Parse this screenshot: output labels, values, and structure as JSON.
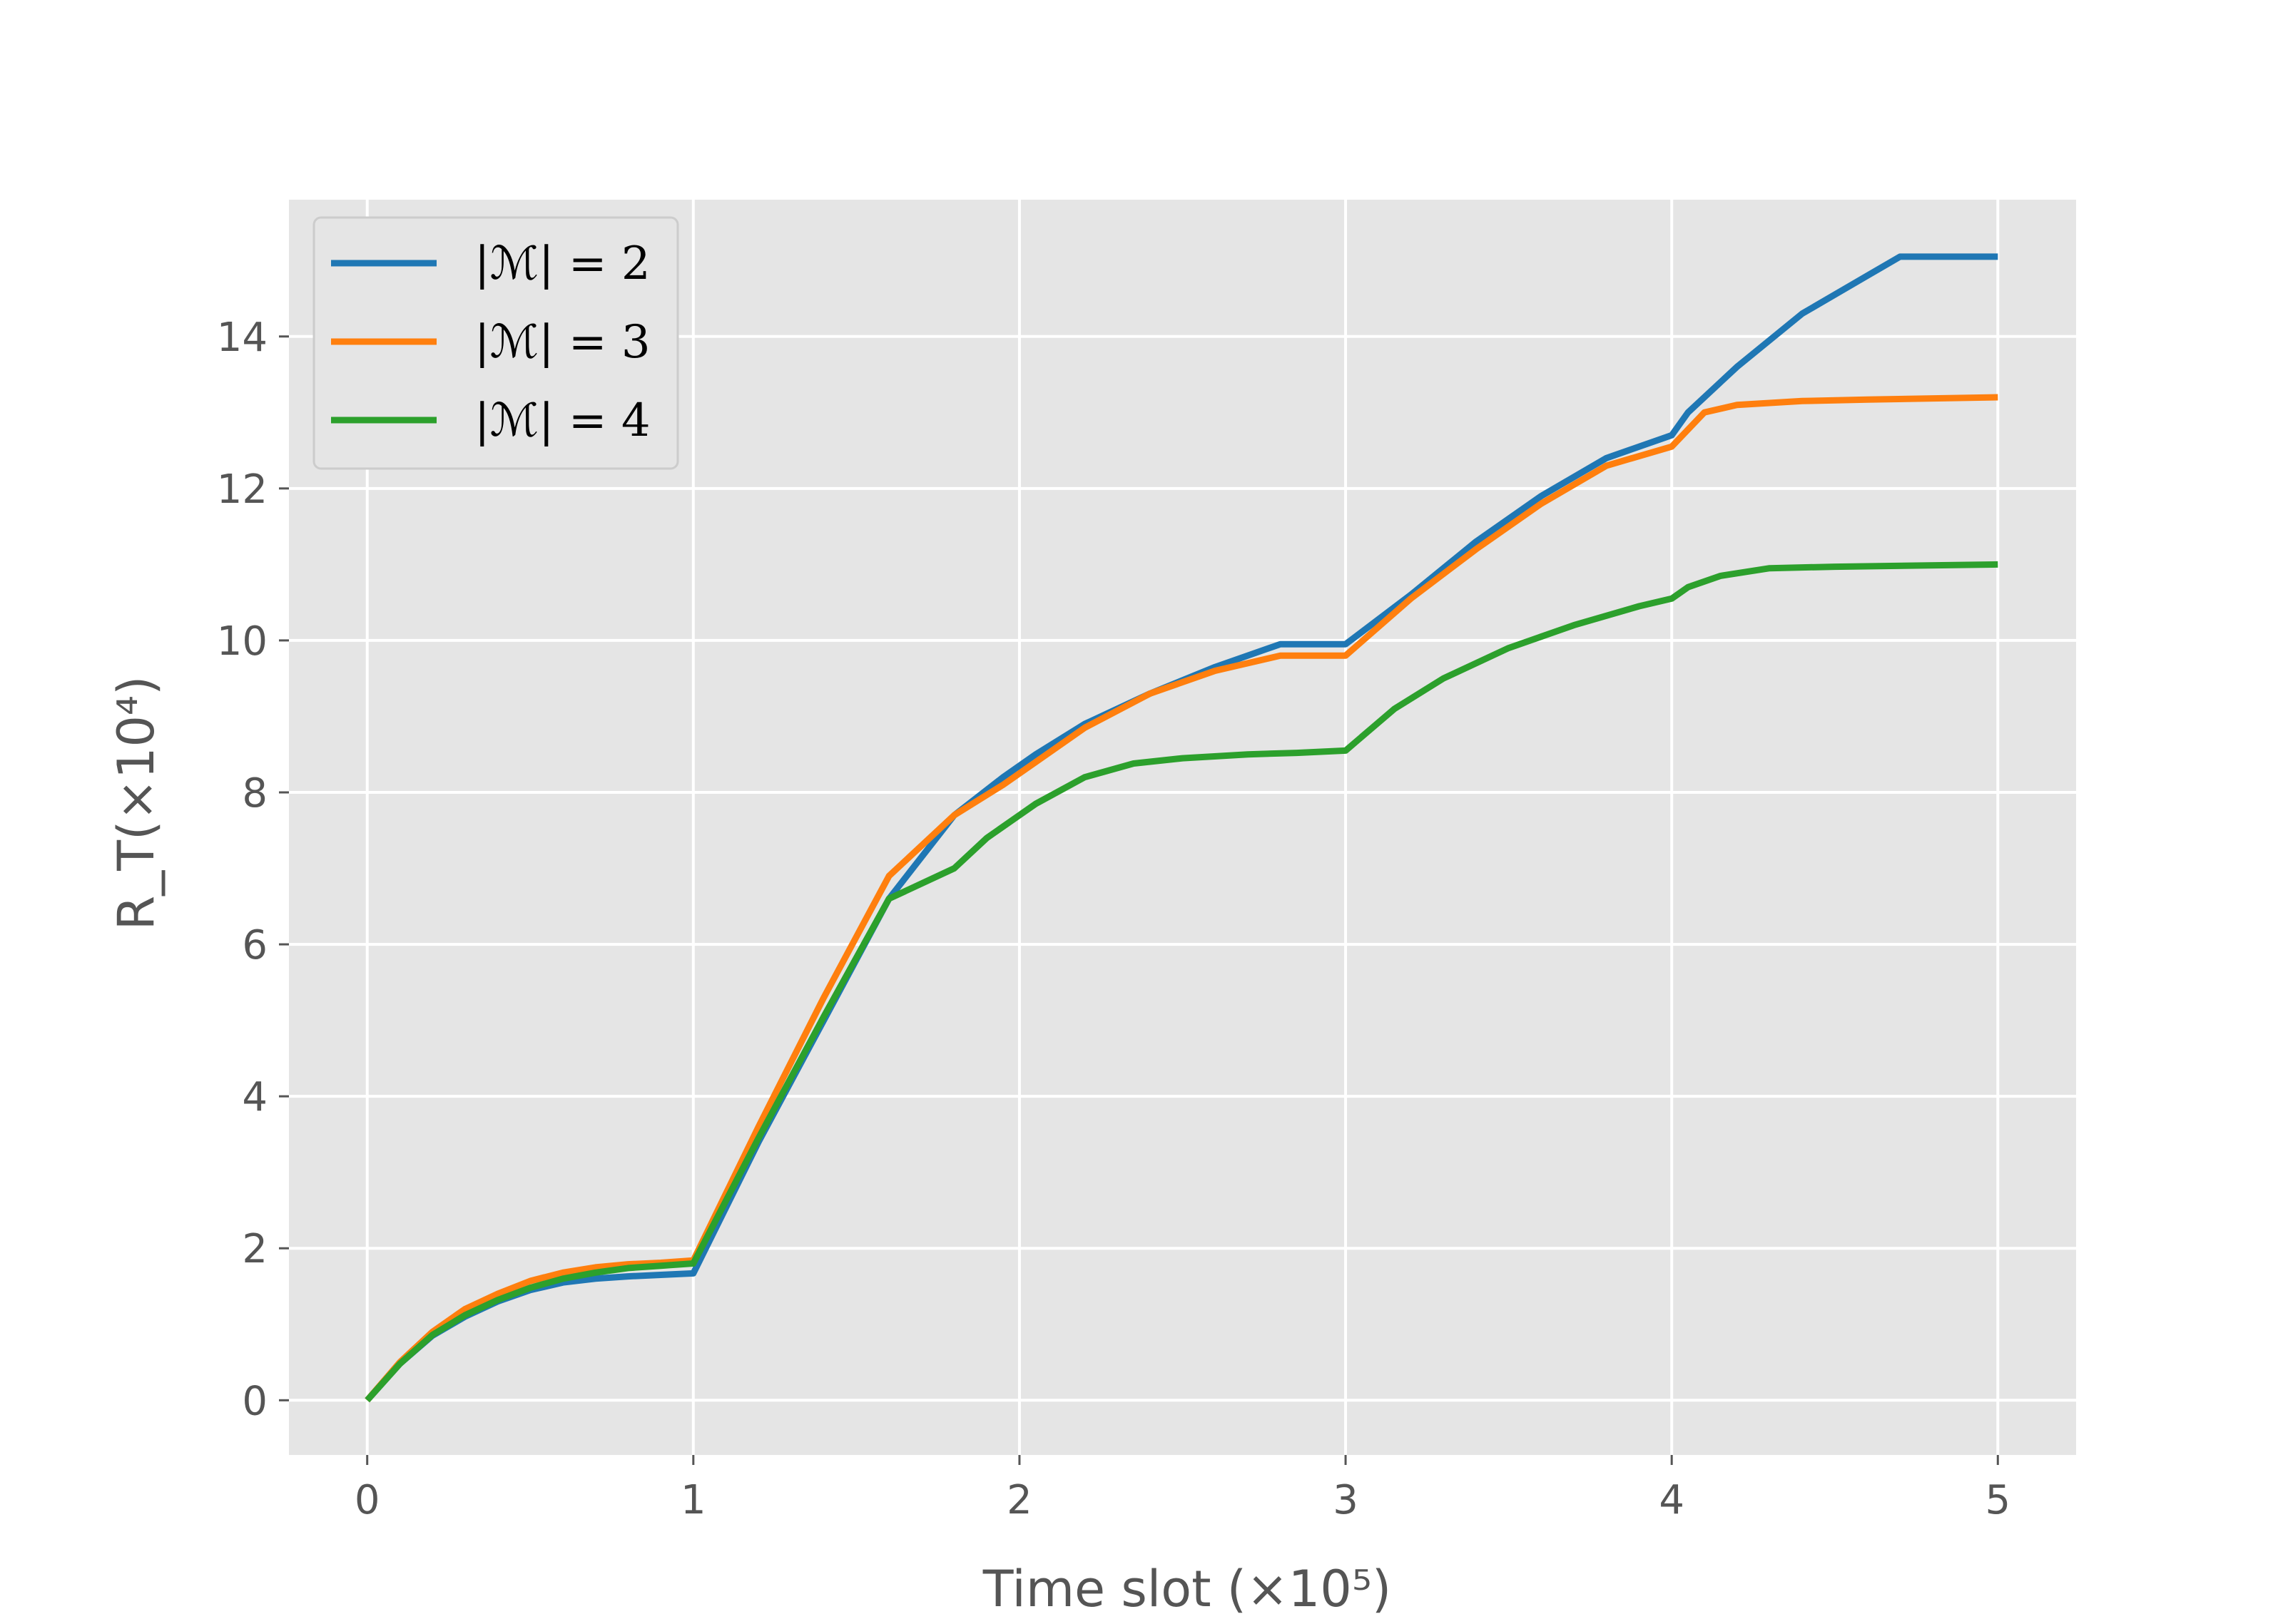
{
  "chart_data": {
    "type": "line",
    "xlabel": "Time slot (×10⁵)",
    "ylabel": "R_T(×10⁴)",
    "xlim": [
      -0.24,
      5.24
    ],
    "ylim": [
      -0.72,
      15.8
    ],
    "xticks": [
      0,
      1,
      2,
      3,
      4,
      5
    ],
    "yticks": [
      0,
      2,
      4,
      6,
      8,
      10,
      12,
      14
    ],
    "grid": true,
    "legend_position": "top-left",
    "series": [
      {
        "name": "|ℳ| = 2",
        "color": "#1f77b4",
        "x": [
          0,
          0.1,
          0.2,
          0.3,
          0.4,
          0.5,
          0.6,
          0.7,
          0.8,
          0.9,
          1.0,
          1.2,
          1.4,
          1.6,
          1.8,
          1.95,
          2.05,
          2.2,
          2.4,
          2.6,
          2.8,
          3.0,
          3.2,
          3.4,
          3.6,
          3.8,
          4.0,
          4.05,
          4.2,
          4.4,
          4.6,
          4.7,
          5.0
        ],
        "y": [
          0,
          0.48,
          0.85,
          1.1,
          1.3,
          1.45,
          1.55,
          1.6,
          1.63,
          1.65,
          1.67,
          3.4,
          5.0,
          6.6,
          7.7,
          8.2,
          8.5,
          8.9,
          9.3,
          9.65,
          9.95,
          9.95,
          10.6,
          11.3,
          11.9,
          12.4,
          12.7,
          13.0,
          13.6,
          14.3,
          14.8,
          15.05,
          15.05
        ]
      },
      {
        "name": "|ℳ| = 3",
        "color": "#ff7f0e",
        "x": [
          0,
          0.1,
          0.2,
          0.3,
          0.4,
          0.5,
          0.6,
          0.7,
          0.8,
          0.9,
          1.0,
          1.2,
          1.4,
          1.6,
          1.8,
          1.95,
          2.05,
          2.2,
          2.4,
          2.6,
          2.8,
          3.0,
          3.2,
          3.4,
          3.6,
          3.8,
          4.0,
          4.1,
          4.2,
          4.4,
          4.6,
          5.0
        ],
        "y": [
          0,
          0.5,
          0.9,
          1.2,
          1.4,
          1.57,
          1.68,
          1.75,
          1.79,
          1.81,
          1.84,
          3.6,
          5.3,
          6.9,
          7.7,
          8.1,
          8.4,
          8.85,
          9.3,
          9.6,
          9.8,
          9.8,
          10.55,
          11.2,
          11.8,
          12.3,
          12.55,
          13.0,
          13.1,
          13.15,
          13.17,
          13.2
        ]
      },
      {
        "name": "|ℳ| = 4",
        "color": "#2ca02c",
        "x": [
          0,
          0.1,
          0.2,
          0.3,
          0.4,
          0.5,
          0.6,
          0.7,
          0.8,
          0.9,
          1.0,
          1.2,
          1.4,
          1.6,
          1.8,
          1.9,
          2.05,
          2.2,
          2.35,
          2.5,
          2.7,
          2.85,
          3.0,
          3.15,
          3.3,
          3.5,
          3.7,
          3.9,
          4.0,
          4.05,
          4.15,
          4.3,
          4.5,
          5.0
        ],
        "y": [
          0,
          0.48,
          0.86,
          1.12,
          1.32,
          1.48,
          1.6,
          1.68,
          1.74,
          1.77,
          1.8,
          3.45,
          5.05,
          6.6,
          7.0,
          7.4,
          7.85,
          8.2,
          8.38,
          8.45,
          8.5,
          8.52,
          8.55,
          9.1,
          9.5,
          9.9,
          10.2,
          10.45,
          10.55,
          10.7,
          10.85,
          10.95,
          10.97,
          11.0
        ]
      }
    ]
  }
}
